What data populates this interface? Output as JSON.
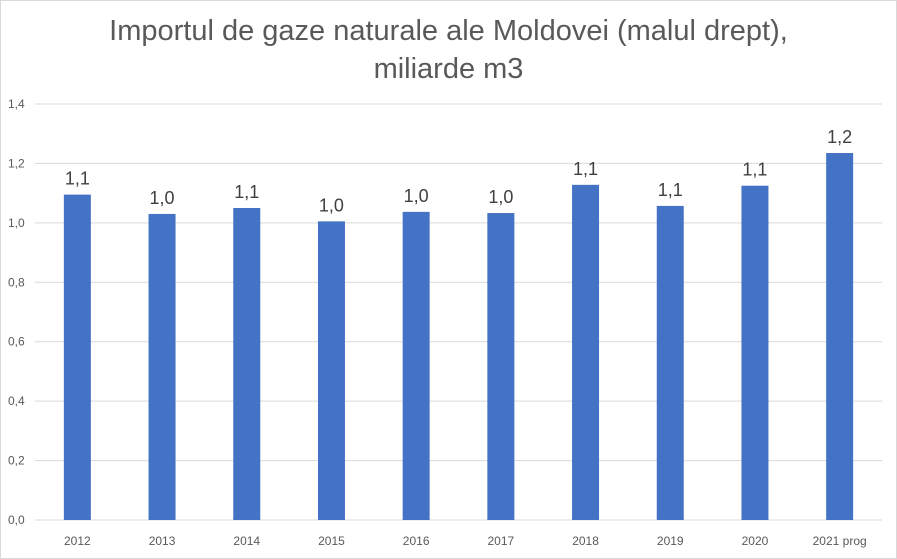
{
  "chart_data": {
    "type": "bar",
    "title": "Importul de gaze naturale ale Moldovei (malul drept),",
    "subtitle": "miliarde m3",
    "categories": [
      "2012",
      "2013",
      "2014",
      "2015",
      "2016",
      "2017",
      "2018",
      "2019",
      "2020",
      "2021 prog"
    ],
    "values": [
      1.095,
      1.03,
      1.05,
      1.005,
      1.037,
      1.033,
      1.128,
      1.057,
      1.125,
      1.235
    ],
    "data_labels": [
      "1,1",
      "1,0",
      "1,1",
      "1,0",
      "1,0",
      "1,0",
      "1,1",
      "1,1",
      "1,1",
      "1,2"
    ],
    "yticks": [
      "0,0",
      "0,2",
      "0,4",
      "0,6",
      "0,8",
      "1,0",
      "1,2",
      "1,4"
    ],
    "ylim": [
      0,
      1.4
    ],
    "grid": true,
    "legend": "none",
    "bar_color": "#4472c4",
    "grid_color": "#d9d9d9",
    "text_color": "#595959"
  }
}
